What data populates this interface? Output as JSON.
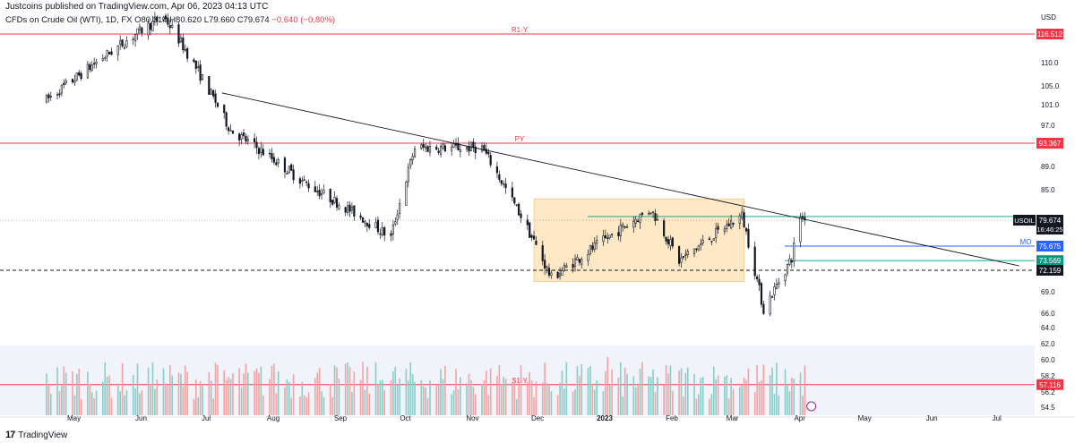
{
  "header": {
    "publisher": "Justcoins published on TradingView.com, Apr 06, 2023 04:13 UTC",
    "symbol_desc": "CFDs on Crude Oil (WTI), 1D, FX",
    "ohlc": "O80.314 H80.620 L79.660 C79.674",
    "change": "−0.640 (−0.80%)"
  },
  "footer": {
    "brand": "TradingView",
    "logo": "17"
  },
  "colors": {
    "up": "#26a69a",
    "down": "#ef5350",
    "up_vol": "#89cdc6",
    "down_vol": "#f3a3a1",
    "resistance": "#f23645",
    "box": "#ffe0b2",
    "trendline": "#131722",
    "green_level": "#089981",
    "blue_level": "#2962ff"
  },
  "chart_data": {
    "type": "candlestick",
    "currency": "USD",
    "y_axis_ticks": [
      116.512,
      110.0,
      105.0,
      101.0,
      97.0,
      93.367,
      89.0,
      85.0,
      79.674,
      75.675,
      73.569,
      72.159,
      69.0,
      66.0,
      64.0,
      62.0,
      60.0,
      58.2,
      57.116,
      56.2,
      54.5
    ],
    "x_axis_labels": [
      "May",
      "Jun",
      "Jul",
      "Aug",
      "Sep",
      "Oct",
      "Nov",
      "Dec",
      "2023",
      "Feb",
      "Mar",
      "Apr",
      "May",
      "Jun",
      "Jul"
    ],
    "levels": [
      {
        "name": "R1-Y",
        "value": 116.512,
        "color": "#f23645",
        "label": "116.512"
      },
      {
        "name": "PY",
        "value": 93.367,
        "color": "#f23645",
        "label": "93.367"
      },
      {
        "name": "",
        "value": 80.314,
        "color": "#089981",
        "label": "80.314"
      },
      {
        "name": "MO",
        "value": 75.675,
        "color": "#2962ff",
        "label": "75.675"
      },
      {
        "name": "",
        "value": 73.569,
        "color": "#089981",
        "label": "73.569"
      },
      {
        "name": "",
        "value": 72.159,
        "color": "#131722",
        "label": "72.159",
        "dashed": true
      },
      {
        "name": "S1-Y",
        "value": 57.116,
        "color": "#f23645",
        "label": "57.116"
      }
    ],
    "current_price": {
      "symbol": "USOIL",
      "price": "79.674",
      "countdown": "16:46:25"
    },
    "trendline": {
      "from": {
        "date": "Jul 10",
        "price": 103.5
      },
      "to": {
        "date": "Jul 13 2023",
        "price": 72.8
      }
    },
    "range_box": {
      "from_date": "Dec 1",
      "to_date": "Mar 8",
      "low": 70.5,
      "high": 83.4
    },
    "anchors": [
      {
        "date": "Apr 20",
        "price": 102
      },
      {
        "date": "Jun 13",
        "price": 121
      },
      {
        "date": "Jul 14",
        "price": 96
      },
      {
        "date": "Aug 16",
        "price": 86.5
      },
      {
        "date": "Sep 26",
        "price": 77
      },
      {
        "date": "Oct 7",
        "price": 92.5
      },
      {
        "date": "Nov 7",
        "price": 92.5
      },
      {
        "date": "Dec 9",
        "price": 71
      },
      {
        "date": "Jan 24",
        "price": 81.5
      },
      {
        "date": "Feb 6",
        "price": 73.5
      },
      {
        "date": "Mar 7",
        "price": 80.5
      },
      {
        "date": "Mar 17",
        "price": 66.5
      },
      {
        "date": "Mar 30",
        "price": 74
      },
      {
        "date": "Apr 3",
        "price": 80.5
      },
      {
        "date": "Apr 5",
        "price": 79.674
      }
    ]
  }
}
